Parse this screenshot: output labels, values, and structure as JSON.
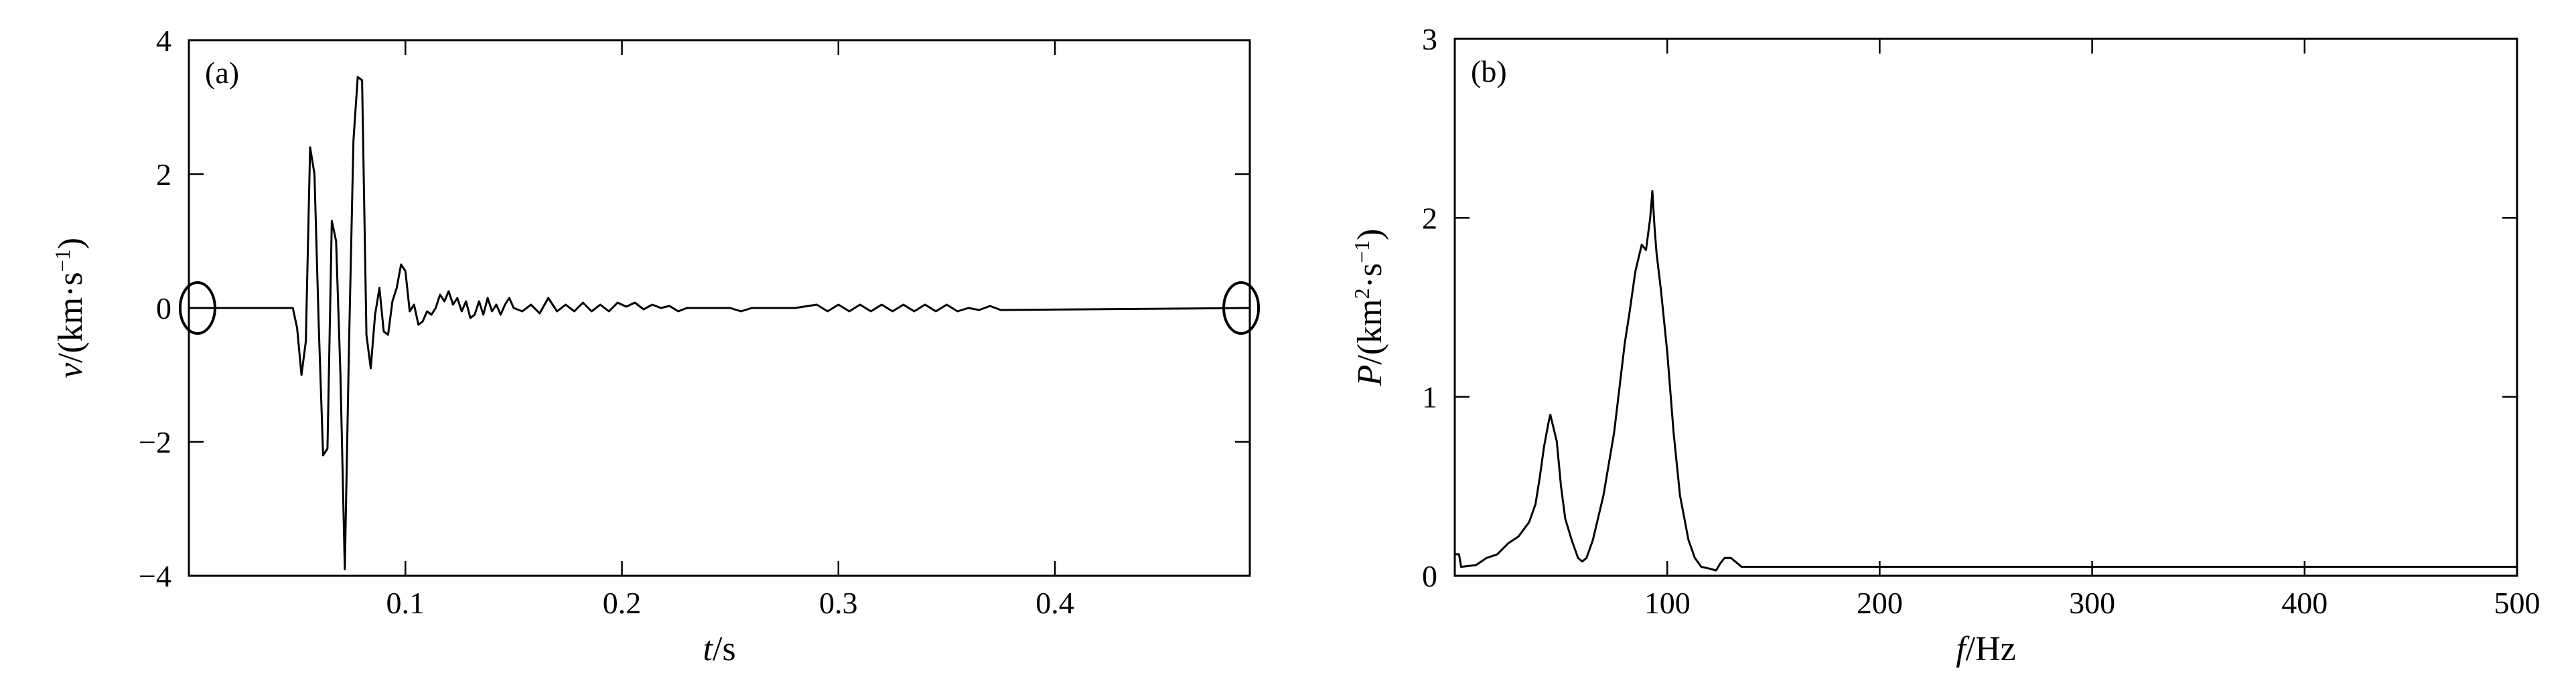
{
  "chart_data": [
    {
      "type": "line",
      "panel_label": "(a)",
      "xlabel_var": "t",
      "xlabel_unit": "/s",
      "ylabel_var": "v",
      "ylabel_unit": "/(km·s",
      "ylabel_sup": "−1",
      "ylabel_close": ")",
      "xlim": [
        0,
        0.49
      ],
      "ylim": [
        -4,
        4
      ],
      "xticks": [
        0.1,
        0.2,
        0.3,
        0.4
      ],
      "xtick_labels": [
        "0.1",
        "0.2",
        "0.3",
        "0.4"
      ],
      "yticks": [
        -4,
        -2,
        0,
        2,
        4
      ],
      "ytick_labels": [
        "−4",
        "−2",
        "0",
        "2",
        "4"
      ],
      "grid": false,
      "markers": [
        {
          "shape": "ellipse",
          "x": 0.004,
          "y": 0
        },
        {
          "shape": "ellipse",
          "x": 0.486,
          "y": 0
        }
      ],
      "series": [
        {
          "x": [
            0,
            0.048,
            0.05,
            0.052,
            0.054,
            0.056,
            0.058,
            0.06,
            0.062,
            0.064,
            0.066,
            0.068,
            0.07,
            0.072,
            0.074,
            0.076,
            0.078,
            0.08,
            0.082,
            0.084,
            0.086,
            0.088,
            0.09,
            0.092,
            0.094,
            0.096,
            0.098,
            0.1,
            0.102,
            0.104,
            0.106,
            0.108,
            0.11,
            0.112,
            0.114,
            0.116,
            0.118,
            0.12,
            0.122,
            0.124,
            0.126,
            0.128,
            0.13,
            0.132,
            0.134,
            0.136,
            0.138,
            0.14,
            0.142,
            0.144,
            0.146,
            0.148,
            0.15,
            0.154,
            0.158,
            0.162,
            0.166,
            0.17,
            0.174,
            0.178,
            0.182,
            0.186,
            0.19,
            0.194,
            0.198,
            0.202,
            0.206,
            0.21,
            0.214,
            0.218,
            0.222,
            0.226,
            0.23,
            0.24,
            0.25,
            0.255,
            0.26,
            0.27,
            0.28,
            0.29,
            0.295,
            0.3,
            0.305,
            0.31,
            0.315,
            0.32,
            0.325,
            0.33,
            0.335,
            0.34,
            0.345,
            0.35,
            0.355,
            0.36,
            0.365,
            0.37,
            0.375,
            0.49
          ],
          "y": [
            0,
            0,
            -0.3,
            -1.0,
            -0.5,
            2.4,
            2.0,
            -0.3,
            -2.2,
            -2.1,
            1.3,
            1.0,
            -1.0,
            -3.9,
            -0.5,
            2.5,
            3.45,
            3.4,
            -0.4,
            -0.9,
            -0.1,
            0.3,
            -0.35,
            -0.4,
            0.1,
            0.3,
            0.65,
            0.55,
            -0.05,
            0.05,
            -0.25,
            -0.2,
            -0.05,
            -0.1,
            0.0,
            0.2,
            0.1,
            0.25,
            0.05,
            0.15,
            -0.05,
            0.1,
            -0.15,
            -0.1,
            0.1,
            -0.1,
            0.15,
            -0.05,
            0.05,
            -0.1,
            0.05,
            0.15,
            0.0,
            -0.05,
            0.05,
            -0.08,
            0.15,
            -0.05,
            0.05,
            -0.05,
            0.08,
            -0.05,
            0.05,
            -0.05,
            0.08,
            0.02,
            0.08,
            -0.02,
            0.05,
            0.0,
            0.03,
            -0.05,
            0.0,
            0.0,
            0.0,
            -0.05,
            0.0,
            0.0,
            0.0,
            0.05,
            -0.05,
            0.05,
            -0.05,
            0.05,
            -0.05,
            0.05,
            -0.05,
            0.05,
            -0.05,
            0.05,
            -0.05,
            0.05,
            -0.05,
            0.0,
            -0.03,
            0.03,
            -0.03,
            0.0
          ]
        }
      ]
    },
    {
      "type": "line",
      "panel_label": "(b)",
      "xlabel_var": "f",
      "xlabel_unit": "/Hz",
      "ylabel_var": "P",
      "ylabel_unit": "/(km",
      "ylabel_sup1": "2",
      "ylabel_mid": "·s",
      "ylabel_sup": "−1",
      "ylabel_close": ")",
      "xlim": [
        0,
        500
      ],
      "ylim": [
        0,
        3
      ],
      "xticks": [
        100,
        200,
        300,
        400,
        500
      ],
      "xtick_labels": [
        "100",
        "200",
        "300",
        "400",
        "500"
      ],
      "yticks": [
        0,
        1,
        2,
        3
      ],
      "ytick_labels": [
        "0",
        "1",
        "2",
        "3"
      ],
      "grid": false,
      "series": [
        {
          "x": [
            0,
            2,
            3,
            10,
            15,
            20,
            25,
            30,
            35,
            38,
            40,
            42,
            44,
            45,
            46,
            48,
            50,
            52,
            55,
            58,
            60,
            62,
            65,
            70,
            75,
            80,
            82,
            85,
            88,
            90,
            92,
            93,
            94,
            95,
            97,
            100,
            103,
            106,
            110,
            113,
            116,
            120,
            123,
            125,
            127,
            130,
            133,
            135,
            140,
            200,
            300,
            400,
            500
          ],
          "y": [
            0.12,
            0.12,
            0.05,
            0.06,
            0.1,
            0.12,
            0.18,
            0.22,
            0.3,
            0.4,
            0.55,
            0.72,
            0.85,
            0.9,
            0.85,
            0.75,
            0.5,
            0.32,
            0.2,
            0.1,
            0.08,
            0.1,
            0.2,
            0.45,
            0.8,
            1.3,
            1.45,
            1.7,
            1.85,
            1.82,
            2.0,
            2.15,
            1.95,
            1.8,
            1.6,
            1.25,
            0.8,
            0.45,
            0.2,
            0.1,
            0.05,
            0.04,
            0.03,
            0.07,
            0.1,
            0.1,
            0.07,
            0.05,
            0.05,
            0.05,
            0.05,
            0.05,
            0.05
          ]
        }
      ]
    }
  ]
}
